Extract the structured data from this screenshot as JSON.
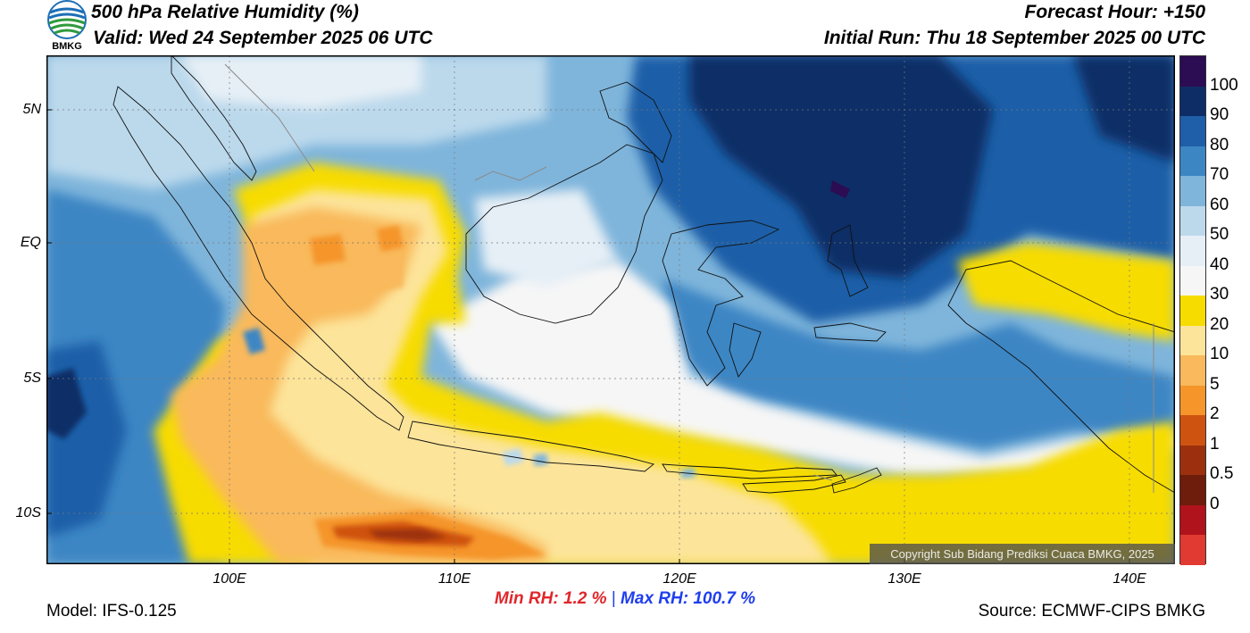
{
  "header": {
    "title": "500 hPa Relative Humidity (%)",
    "valid": "Valid: Wed 24 September 2025 06 UTC",
    "forecast_hour": "Forecast Hour: +150",
    "initial_run": "Initial Run: Thu 18 September 2025 00 UTC",
    "logo_text": "BMKG"
  },
  "map": {
    "lat_labels": [
      "5N",
      "EQ",
      "5S",
      "10S"
    ],
    "lon_labels": [
      "100E",
      "110E",
      "120E",
      "130E",
      "140E"
    ],
    "copyright": "Copyright Sub Bidang Prediksi Cuaca BMKG, 2025"
  },
  "colorbar": {
    "labels": [
      "100",
      "90",
      "80",
      "70",
      "60",
      "50",
      "40",
      "30",
      "20",
      "10",
      "5",
      "2",
      "1",
      "0.5",
      "0"
    ],
    "colors": [
      "#2c0c52",
      "#0e2d66",
      "#1f5ea8",
      "#3d86c4",
      "#7fb5db",
      "#bcd9ec",
      "#e6eff6",
      "#f6f6f6",
      "#f7dc00",
      "#fce49a",
      "#f9b95c",
      "#f5952a",
      "#cf5310",
      "#9c300e",
      "#6e1c0c",
      "#b1131c",
      "#e03a33"
    ]
  },
  "footer": {
    "model": "Model: IFS-0.125",
    "min_rh": "Min RH:   1.2 %",
    "separator": "|",
    "max_rh": "Max RH: 100.7 %",
    "source": "Source: ECMWF-CIPS BMKG"
  }
}
